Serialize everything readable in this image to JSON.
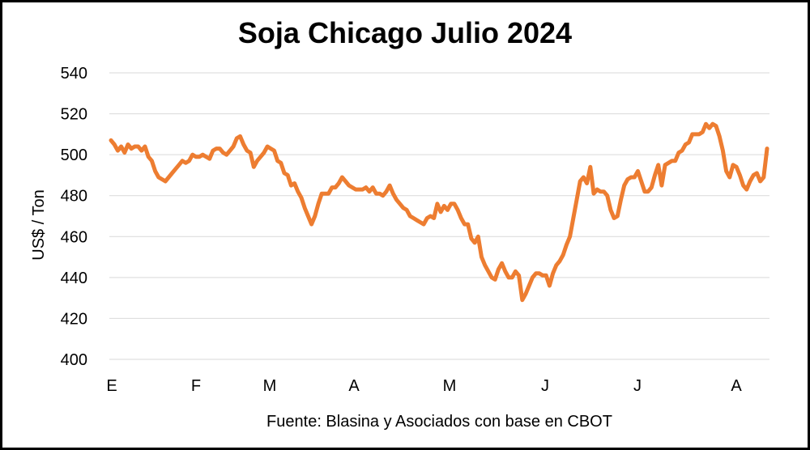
{
  "chart_data": {
    "type": "line",
    "title": "Soja Chicago Julio 2024",
    "ylabel": "US$ / Ton",
    "xlabel": "",
    "source": "Fuente: Blasina y Asociados con base en CBOT",
    "ylim": [
      400,
      540
    ],
    "yticks": [
      400,
      420,
      440,
      460,
      480,
      500,
      520,
      540
    ],
    "xticks": [
      "E",
      "F",
      "M",
      "A",
      "M",
      "J",
      "J",
      "A"
    ],
    "grid": "horizontal",
    "color": "#ED7D31",
    "series": [
      {
        "values": [
          507,
          505,
          502,
          504,
          501,
          505,
          503,
          504,
          504,
          502,
          504,
          499,
          497,
          492,
          489,
          488,
          487,
          489,
          491,
          493,
          495,
          497,
          496,
          497,
          500,
          499,
          499,
          500,
          499,
          498,
          502,
          503,
          503,
          501,
          500,
          502,
          504,
          508,
          509,
          505,
          502,
          501,
          494,
          497,
          499,
          501,
          504,
          503,
          502,
          497,
          496,
          491,
          490,
          485,
          486,
          482,
          479,
          474,
          470,
          466,
          470,
          476,
          481,
          481,
          481,
          484,
          484,
          486,
          489,
          487,
          485,
          484,
          483,
          483,
          483,
          484,
          482,
          484,
          481,
          481,
          480,
          482,
          485,
          481,
          478,
          476,
          474,
          473,
          470,
          469,
          468,
          467,
          466,
          469,
          470,
          469,
          476,
          472,
          475,
          473,
          476,
          476,
          473,
          469,
          466,
          466,
          459,
          457,
          460,
          450,
          446,
          443,
          440,
          439,
          444,
          447,
          443,
          440,
          440,
          443,
          441,
          429,
          432,
          436,
          440,
          442,
          442,
          441,
          441,
          436,
          442,
          446,
          448,
          451,
          456,
          460,
          469,
          478,
          487,
          489,
          486,
          494,
          481,
          483,
          482,
          482,
          480,
          473,
          469,
          470,
          478,
          485,
          488,
          489,
          489,
          492,
          487,
          482,
          482,
          484,
          490,
          495,
          485,
          495,
          496,
          497,
          497,
          501,
          502,
          505,
          506,
          510,
          510,
          510,
          511,
          515,
          513,
          515,
          514,
          509,
          502,
          492,
          489,
          495,
          494,
          490,
          485,
          483,
          487,
          490,
          491,
          487,
          489,
          503
        ]
      }
    ]
  }
}
